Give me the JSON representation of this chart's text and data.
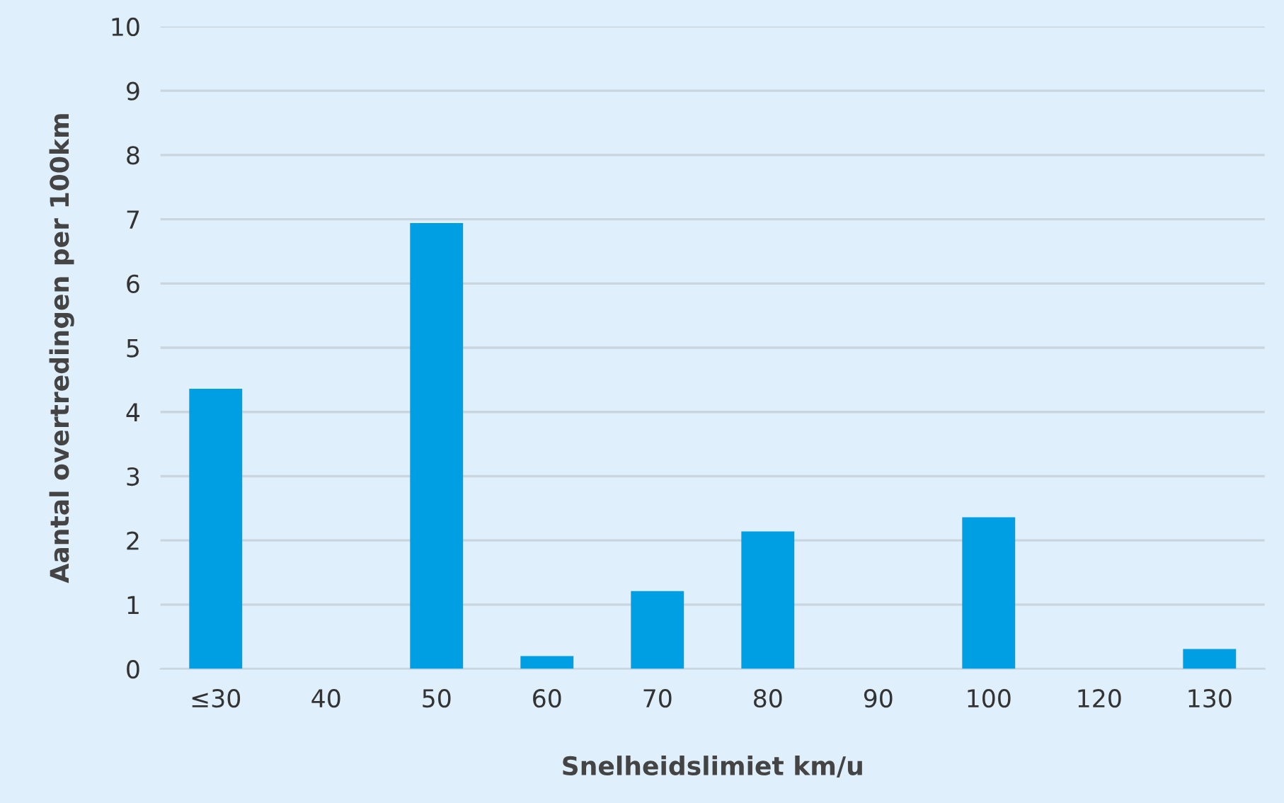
{
  "chart_data": {
    "type": "bar",
    "xlabel": "Snelheidslimiet km/u",
    "ylabel": "Aantal overtredingen per 100km",
    "categories": [
      "≤30",
      "40",
      "50",
      "60",
      "70",
      "80",
      "90",
      "100",
      "120",
      "130"
    ],
    "values": [
      4.36,
      0,
      6.94,
      0.2,
      1.21,
      2.14,
      0,
      2.36,
      0,
      0.31
    ],
    "color": "#009fe3",
    "ylim": [
      0,
      10
    ],
    "yticks": [
      0,
      1,
      2,
      3,
      4,
      5,
      6,
      7,
      8,
      9,
      10
    ],
    "grid": "y"
  }
}
